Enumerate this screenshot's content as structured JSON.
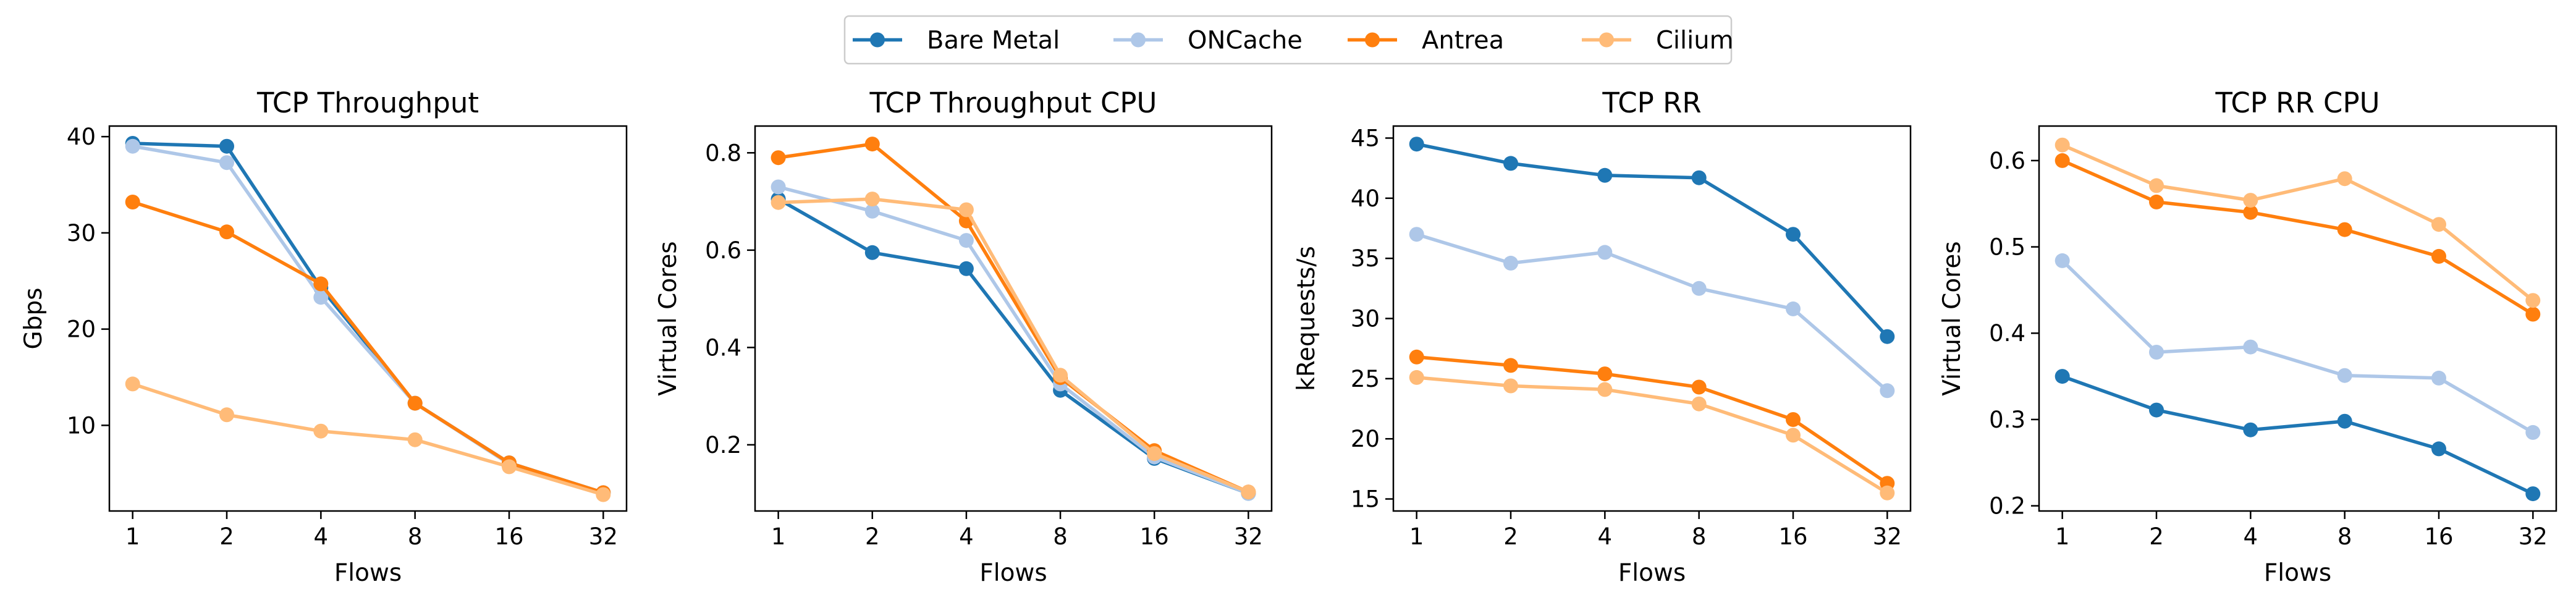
{
  "legend": {
    "placement": "top-center",
    "entries": [
      {
        "name": "Bare Metal",
        "color": "#1f77b4"
      },
      {
        "name": "ONCache",
        "color": "#aec7e8"
      },
      {
        "name": "Antrea",
        "color": "#ff7f0e"
      },
      {
        "name": "Cilium",
        "color": "#ffbb78"
      }
    ]
  },
  "chart_data": [
    {
      "type": "line",
      "title": "TCP Throughput",
      "xlabel": "Flows",
      "ylabel": "Gbps",
      "x": [
        1,
        2,
        4,
        8,
        16,
        32
      ],
      "xticks": [
        "1",
        "2",
        "4",
        "8",
        "16",
        "32"
      ],
      "ylim": [
        1.1,
        41.1
      ],
      "yticks": [
        10,
        20,
        30,
        40
      ],
      "ytick_labels": [
        "10",
        "20",
        "30",
        "40"
      ],
      "grid": false,
      "series": [
        {
          "name": "Bare Metal",
          "color": "#1f77b4",
          "values": [
            39.3,
            39.0,
            24.3,
            12.3,
            6.1,
            3.0
          ]
        },
        {
          "name": "ONCache",
          "color": "#aec7e8",
          "values": [
            39.0,
            37.3,
            23.3,
            12.3,
            6.0,
            3.0
          ]
        },
        {
          "name": "Antrea",
          "color": "#ff7f0e",
          "values": [
            33.2,
            30.1,
            24.7,
            12.3,
            6.1,
            3.0
          ]
        },
        {
          "name": "Cilium",
          "color": "#ffbb78",
          "values": [
            14.3,
            11.1,
            9.4,
            8.5,
            5.7,
            2.8
          ]
        }
      ]
    },
    {
      "type": "line",
      "title": "TCP Throughput CPU",
      "xlabel": "Flows",
      "ylabel": "Virtual Cores",
      "x": [
        1,
        2,
        4,
        8,
        16,
        32
      ],
      "xticks": [
        "1",
        "2",
        "4",
        "8",
        "16",
        "32"
      ],
      "ylim": [
        0.064,
        0.855
      ],
      "yticks": [
        0.2,
        0.4,
        0.6,
        0.8
      ],
      "ytick_labels": [
        "0.2",
        "0.4",
        "0.6",
        "0.8"
      ],
      "grid": false,
      "series": [
        {
          "name": "Bare Metal",
          "color": "#1f77b4",
          "values": [
            0.705,
            0.595,
            0.562,
            0.312,
            0.172,
            0.1
          ]
        },
        {
          "name": "ONCache",
          "color": "#aec7e8",
          "values": [
            0.73,
            0.68,
            0.62,
            0.325,
            0.175,
            0.1
          ]
        },
        {
          "name": "Antrea",
          "color": "#ff7f0e",
          "values": [
            0.79,
            0.818,
            0.66,
            0.338,
            0.188,
            0.103
          ]
        },
        {
          "name": "Cilium",
          "color": "#ffbb78",
          "values": [
            0.698,
            0.705,
            0.683,
            0.343,
            0.182,
            0.103
          ]
        }
      ]
    },
    {
      "type": "line",
      "title": "TCP RR",
      "xlabel": "Flows",
      "ylabel": "kRequests/s",
      "x": [
        1,
        2,
        4,
        8,
        16,
        32
      ],
      "xticks": [
        "1",
        "2",
        "4",
        "8",
        "16",
        "32"
      ],
      "ylim": [
        14.0,
        46.0
      ],
      "yticks": [
        15,
        20,
        25,
        30,
        35,
        40,
        45
      ],
      "ytick_labels": [
        "15",
        "20",
        "25",
        "30",
        "35",
        "40",
        "45"
      ],
      "grid": false,
      "series": [
        {
          "name": "Bare Metal",
          "color": "#1f77b4",
          "values": [
            44.5,
            42.9,
            41.9,
            41.7,
            37.0,
            28.5
          ]
        },
        {
          "name": "ONCache",
          "color": "#aec7e8",
          "values": [
            37.0,
            34.6,
            35.5,
            32.5,
            30.8,
            24.0
          ]
        },
        {
          "name": "Antrea",
          "color": "#ff7f0e",
          "values": [
            26.8,
            26.1,
            25.4,
            24.3,
            21.6,
            16.3
          ]
        },
        {
          "name": "Cilium",
          "color": "#ffbb78",
          "values": [
            25.1,
            24.4,
            24.1,
            22.9,
            20.3,
            15.5
          ]
        }
      ]
    },
    {
      "type": "line",
      "title": "TCP RR CPU",
      "xlabel": "Flows",
      "ylabel": "Virtual Cores",
      "x": [
        1,
        2,
        4,
        8,
        16,
        32
      ],
      "xticks": [
        "1",
        "2",
        "4",
        "8",
        "16",
        "32"
      ],
      "ylim": [
        0.194,
        0.64
      ],
      "yticks": [
        0.2,
        0.3,
        0.4,
        0.5,
        0.6
      ],
      "ytick_labels": [
        "0.2",
        "0.3",
        "0.4",
        "0.5",
        "0.6"
      ],
      "grid": false,
      "series": [
        {
          "name": "Bare Metal",
          "color": "#1f77b4",
          "values": [
            0.35,
            0.311,
            0.288,
            0.298,
            0.266,
            0.214
          ]
        },
        {
          "name": "ONCache",
          "color": "#aec7e8",
          "values": [
            0.484,
            0.378,
            0.384,
            0.351,
            0.348,
            0.285
          ]
        },
        {
          "name": "Antrea",
          "color": "#ff7f0e",
          "values": [
            0.6,
            0.552,
            0.54,
            0.52,
            0.489,
            0.422
          ]
        },
        {
          "name": "Cilium",
          "color": "#ffbb78",
          "values": [
            0.618,
            0.571,
            0.554,
            0.579,
            0.526,
            0.438
          ]
        }
      ]
    }
  ]
}
